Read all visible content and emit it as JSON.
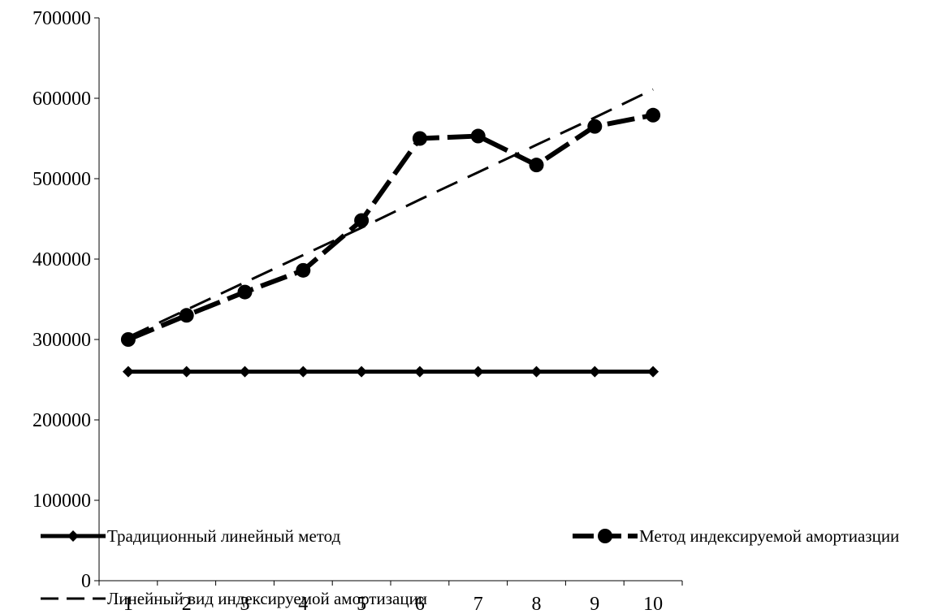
{
  "chart_data": {
    "type": "line",
    "title": "",
    "xlabel": "",
    "ylabel": "",
    "ylim": [
      0,
      700000
    ],
    "yticks": [
      0,
      100000,
      200000,
      300000,
      400000,
      500000,
      600000,
      700000
    ],
    "categories": [
      "1",
      "2",
      "3",
      "4",
      "5",
      "6",
      "7",
      "8",
      "9",
      "10"
    ],
    "grid": false,
    "legend_position": "bottom",
    "series": [
      {
        "name": "Традиционный линейный метод",
        "style": "solid-diamond",
        "color": "#000000",
        "values": [
          260000,
          260000,
          260000,
          260000,
          260000,
          260000,
          260000,
          260000,
          260000,
          260000
        ]
      },
      {
        "name": "Метод индексируемой амортиазции",
        "style": "dashed-circle",
        "color": "#000000",
        "values": [
          300000,
          330000,
          359000,
          386000,
          448000,
          550000,
          553000,
          517000,
          565000,
          579000
        ]
      },
      {
        "name": "Линейный вид индексируемой амортизации",
        "style": "dashed-trend",
        "color": "#000000",
        "values": [
          303000,
          337000,
          371000,
          405000,
          439000,
          474000,
          508000,
          542000,
          576000,
          611000
        ]
      }
    ]
  }
}
